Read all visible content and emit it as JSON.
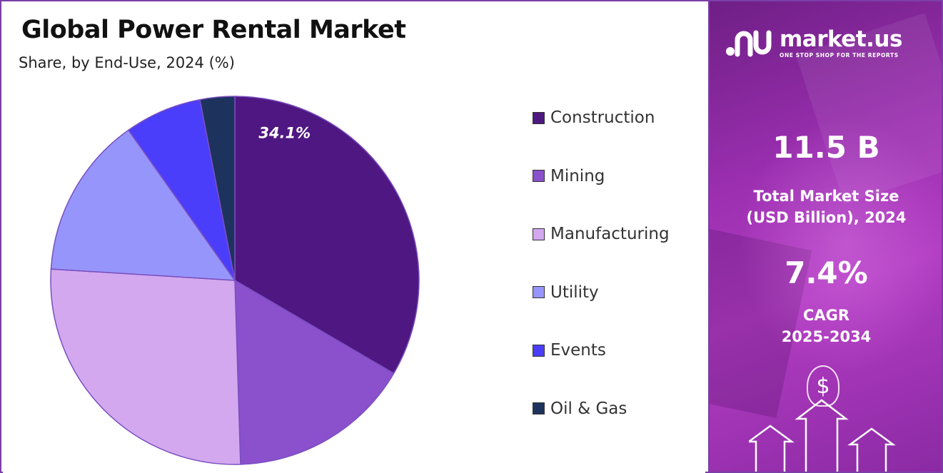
{
  "title": "Global Power Rental Market",
  "subtitle": "Share, by End-Use, 2024 (%)",
  "chart_data": {
    "type": "pie",
    "title": "Global Power Rental Market",
    "subtitle": "Share, by End-Use, 2024 (%)",
    "categories": [
      "Construction",
      "Mining",
      "Manufacturing",
      "Utility",
      "Events",
      "Oil & Gas"
    ],
    "values": [
      34.1,
      16.4,
      27.0,
      14.5,
      6.9,
      3.1
    ],
    "colors": [
      "#4f1782",
      "#8b50cc",
      "#d3a8ef",
      "#9695fb",
      "#4b3efb",
      "#1d335e"
    ],
    "data_labels": [
      "34.1%",
      "",
      "",
      "",
      "",
      ""
    ],
    "legend_position": "right"
  },
  "sidebar": {
    "brand_name": "market.us",
    "brand_tagline": "ONE STOP SHOP FOR THE REPORTS",
    "market_size_value": "11.5 B",
    "market_size_label_line1": "Total Market Size",
    "market_size_label_line2": "(USD Billion), 2024",
    "cagr_value": "7.4%",
    "cagr_label_line1": "CAGR",
    "cagr_label_line2": "2025-2034",
    "currency_symbol": "$"
  }
}
